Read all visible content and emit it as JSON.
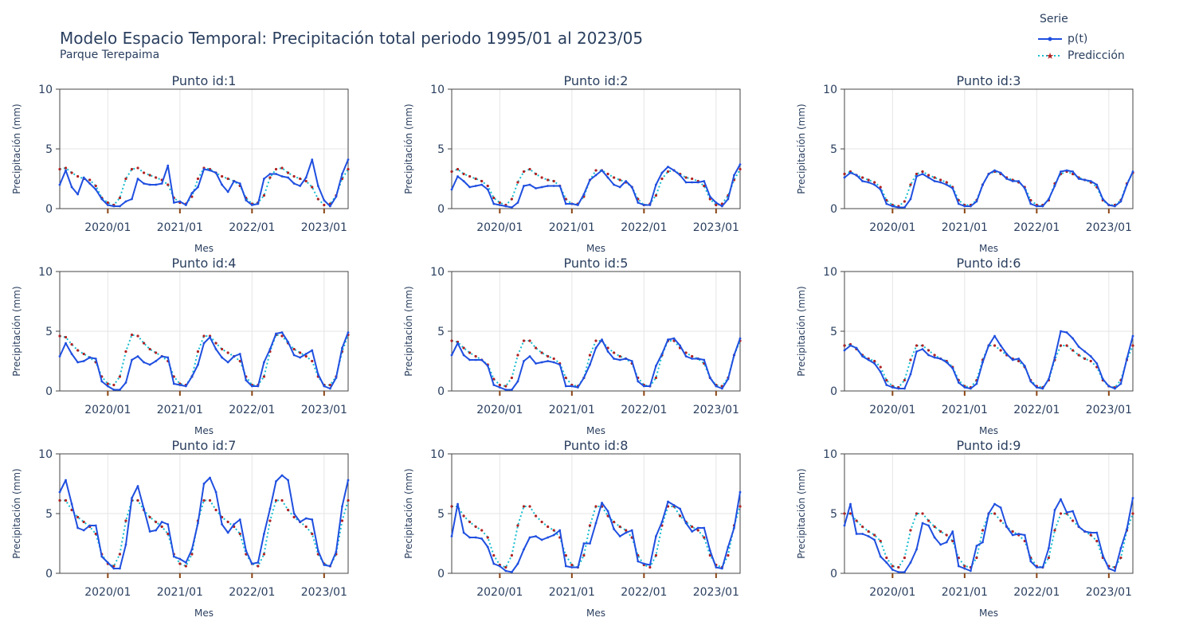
{
  "title": "Modelo Espacio Temporal: Precipitación total periodo 1995/01 al 2023/05",
  "subtitle": "Parque Terepaima",
  "legend": {
    "title": "Serie",
    "items": [
      {
        "label": "p(t)",
        "color": "#1f4fe0",
        "style": "solid-line-with-dots"
      },
      {
        "label": "Predicción",
        "color": "#17becf",
        "marker_color": "#b22222",
        "style": "dotted-line-with-stars"
      }
    ]
  },
  "axis_labels": {
    "x": "Mes",
    "y": "Precipitación (mm)"
  },
  "chart_data": {
    "type": "line",
    "layout": "3x3 small multiples",
    "x_start": "2019/05",
    "x_end": "2023/05",
    "x_ticks": [
      "2020/01",
      "2021/01",
      "2022/01",
      "2023/01"
    ],
    "ylim": [
      0,
      10
    ],
    "y_ticks": [
      0,
      5,
      10
    ],
    "grid": true,
    "legend_position": "top-right",
    "colors": {
      "observed": "#1f4fe0",
      "predicted_line": "#17becf",
      "predicted_marker": "#b22222",
      "grid": "#e5e5e5",
      "axis": "#444444",
      "tick_mark": "#8b4513"
    },
    "panels": [
      {
        "title": "Punto id:1",
        "observed": [
          2.0,
          3.2,
          1.8,
          1.2,
          2.6,
          2.1,
          1.6,
          0.8,
          0.3,
          0.2,
          0.2,
          0.6,
          0.8,
          2.5,
          2.1,
          2.0,
          2.0,
          2.1,
          3.6,
          0.5,
          0.6,
          0.3,
          1.3,
          1.8,
          3.3,
          3.2,
          3.0,
          2.0,
          1.4,
          2.3,
          2.1,
          0.7,
          0.3,
          0.4,
          2.5,
          2.9,
          2.9,
          2.7,
          2.6,
          2.1,
          1.9,
          2.6,
          4.1,
          1.9,
          0.7,
          0.2,
          1.0,
          2.9,
          4.1
        ],
        "predicted": [
          3.3,
          3.4,
          3.0,
          2.7,
          2.5,
          2.4,
          1.9,
          0.9,
          0.5,
          0.3,
          0.9,
          2.5,
          3.3,
          3.4,
          3.0,
          2.8,
          2.6,
          2.4,
          2.0,
          0.9,
          0.5,
          0.4,
          1.0,
          2.5,
          3.4,
          3.3,
          3.0,
          2.7,
          2.5,
          2.3,
          1.9,
          0.9,
          0.4,
          0.5,
          1.1,
          2.6,
          3.3,
          3.4,
          3.0,
          2.7,
          2.5,
          2.3,
          1.8,
          0.8,
          0.3,
          0.4,
          1.1,
          2.5,
          3.3
        ]
      },
      {
        "title": "Punto id:2",
        "observed": [
          1.6,
          2.7,
          2.3,
          1.8,
          1.9,
          2.0,
          1.6,
          0.4,
          0.3,
          0.2,
          0.1,
          0.5,
          1.9,
          2.0,
          1.7,
          1.8,
          1.9,
          1.9,
          1.9,
          0.4,
          0.4,
          0.3,
          1.2,
          2.4,
          2.8,
          3.2,
          2.6,
          2.0,
          1.8,
          2.3,
          1.8,
          0.5,
          0.3,
          0.3,
          2.0,
          3.0,
          3.5,
          3.2,
          2.8,
          2.2,
          2.2,
          2.2,
          2.3,
          1.0,
          0.5,
          0.2,
          0.8,
          2.8,
          3.7
        ],
        "predicted": [
          3.1,
          3.3,
          2.9,
          2.7,
          2.5,
          2.3,
          1.9,
          0.9,
          0.5,
          0.3,
          0.8,
          2.2,
          3.1,
          3.3,
          2.9,
          2.6,
          2.4,
          2.3,
          1.9,
          0.8,
          0.4,
          0.4,
          1.0,
          2.4,
          3.2,
          3.2,
          2.9,
          2.6,
          2.4,
          2.2,
          1.8,
          0.8,
          0.3,
          0.4,
          1.1,
          2.5,
          3.1,
          3.2,
          2.9,
          2.6,
          2.5,
          2.3,
          1.9,
          0.8,
          0.3,
          0.4,
          1.1,
          2.4,
          3.3
        ]
      },
      {
        "title": "Punto id:3",
        "observed": [
          2.6,
          3.0,
          2.8,
          2.3,
          2.2,
          2.0,
          1.6,
          0.4,
          0.2,
          0.1,
          0.1,
          0.8,
          2.7,
          2.9,
          2.6,
          2.3,
          2.2,
          2.0,
          1.7,
          0.4,
          0.2,
          0.2,
          0.6,
          2.0,
          2.9,
          3.2,
          3.0,
          2.5,
          2.3,
          2.3,
          1.7,
          0.4,
          0.2,
          0.2,
          0.8,
          1.9,
          3.1,
          3.2,
          3.1,
          2.5,
          2.4,
          2.3,
          2.0,
          0.8,
          0.3,
          0.2,
          0.6,
          2.0,
          3.1
        ],
        "predicted": [
          2.9,
          3.1,
          2.8,
          2.6,
          2.4,
          2.2,
          1.8,
          0.7,
          0.3,
          0.2,
          0.6,
          2.0,
          2.9,
          3.1,
          2.8,
          2.6,
          2.4,
          2.2,
          1.8,
          0.7,
          0.3,
          0.3,
          0.7,
          2.0,
          2.9,
          3.1,
          2.9,
          2.6,
          2.4,
          2.2,
          1.8,
          0.7,
          0.3,
          0.3,
          0.7,
          2.1,
          2.9,
          3.1,
          2.9,
          2.6,
          2.4,
          2.2,
          1.8,
          0.7,
          0.3,
          0.3,
          0.7,
          2.1,
          3.0
        ]
      },
      {
        "title": "Punto id:4",
        "observed": [
          2.9,
          4.0,
          3.1,
          2.4,
          2.5,
          2.8,
          2.7,
          0.8,
          0.4,
          0.1,
          0.1,
          0.7,
          2.6,
          2.9,
          2.4,
          2.2,
          2.5,
          2.9,
          2.8,
          0.6,
          0.5,
          0.4,
          1.2,
          2.2,
          4.0,
          4.5,
          3.5,
          2.8,
          2.4,
          2.9,
          3.1,
          0.9,
          0.4,
          0.4,
          2.4,
          3.5,
          4.8,
          4.9,
          4.1,
          3.0,
          2.8,
          3.1,
          3.4,
          1.4,
          0.4,
          0.2,
          1.1,
          3.6,
          4.9
        ],
        "predicted": [
          4.6,
          4.5,
          3.9,
          3.4,
          3.1,
          2.8,
          2.4,
          1.2,
          0.6,
          0.5,
          1.2,
          3.3,
          4.7,
          4.6,
          4.0,
          3.5,
          3.2,
          2.9,
          2.5,
          1.2,
          0.6,
          0.5,
          1.2,
          3.3,
          4.6,
          4.6,
          4.0,
          3.5,
          3.2,
          2.9,
          2.5,
          1.2,
          0.5,
          0.5,
          1.2,
          3.3,
          4.7,
          4.6,
          4.0,
          3.5,
          3.2,
          2.9,
          2.5,
          1.2,
          0.5,
          0.5,
          1.2,
          3.3,
          4.7
        ]
      },
      {
        "title": "Punto id:5",
        "observed": [
          3.0,
          4.0,
          3.0,
          2.6,
          2.6,
          2.6,
          2.1,
          0.5,
          0.3,
          0.1,
          0.1,
          0.8,
          2.5,
          2.9,
          2.3,
          2.4,
          2.5,
          2.4,
          2.2,
          0.4,
          0.4,
          0.3,
          1.1,
          2.2,
          3.6,
          4.3,
          3.3,
          2.7,
          2.6,
          2.7,
          2.5,
          0.8,
          0.4,
          0.4,
          2.1,
          3.1,
          4.3,
          4.4,
          3.8,
          2.9,
          2.7,
          2.7,
          2.6,
          1.1,
          0.4,
          0.2,
          1.0,
          3.0,
          4.4
        ],
        "predicted": [
          4.2,
          4.1,
          3.6,
          3.2,
          2.9,
          2.6,
          2.2,
          1.0,
          0.5,
          0.4,
          1.1,
          3.0,
          4.2,
          4.2,
          3.6,
          3.2,
          2.9,
          2.7,
          2.3,
          1.1,
          0.5,
          0.4,
          1.1,
          3.0,
          4.2,
          4.2,
          3.6,
          3.2,
          2.9,
          2.7,
          2.3,
          1.1,
          0.5,
          0.4,
          1.1,
          3.0,
          4.2,
          4.2,
          3.6,
          3.2,
          2.9,
          2.7,
          2.3,
          1.1,
          0.5,
          0.4,
          1.1,
          3.0,
          4.2
        ]
      },
      {
        "title": "Punto id:6",
        "observed": [
          3.4,
          3.8,
          3.6,
          2.9,
          2.6,
          2.3,
          1.6,
          0.5,
          0.3,
          0.2,
          0.2,
          1.4,
          3.3,
          3.5,
          3.0,
          2.8,
          2.7,
          2.4,
          1.9,
          0.7,
          0.3,
          0.2,
          0.6,
          2.4,
          3.8,
          4.6,
          3.8,
          3.1,
          2.6,
          2.7,
          2.1,
          0.8,
          0.3,
          0.2,
          1.0,
          2.8,
          5.0,
          4.9,
          4.4,
          3.7,
          3.3,
          2.9,
          2.3,
          1.0,
          0.4,
          0.2,
          0.6,
          2.7,
          4.6
        ],
        "predicted": [
          3.8,
          3.9,
          3.5,
          3.0,
          2.7,
          2.5,
          2.0,
          0.9,
          0.4,
          0.3,
          0.9,
          2.6,
          3.8,
          3.8,
          3.4,
          3.0,
          2.7,
          2.5,
          2.0,
          0.9,
          0.4,
          0.3,
          0.9,
          2.6,
          3.8,
          3.8,
          3.4,
          3.0,
          2.7,
          2.5,
          2.0,
          0.9,
          0.4,
          0.3,
          0.9,
          2.6,
          3.8,
          3.8,
          3.4,
          3.0,
          2.7,
          2.5,
          2.0,
          0.9,
          0.4,
          0.3,
          0.9,
          2.6,
          3.8
        ]
      },
      {
        "title": "Punto id:7",
        "observed": [
          6.8,
          7.8,
          5.8,
          3.8,
          3.6,
          4.0,
          4.0,
          1.4,
          0.9,
          0.4,
          0.4,
          2.4,
          6.3,
          7.3,
          5.4,
          3.5,
          3.6,
          4.3,
          4.1,
          1.4,
          1.2,
          0.9,
          2.0,
          4.2,
          7.5,
          8.0,
          6.8,
          4.1,
          3.4,
          4.1,
          4.5,
          1.9,
          0.8,
          0.9,
          3.3,
          5.4,
          7.7,
          8.2,
          7.8,
          5.0,
          4.3,
          4.6,
          4.5,
          1.9,
          0.7,
          0.6,
          1.8,
          5.6,
          7.8
        ],
        "predicted": [
          6.1,
          6.1,
          5.3,
          4.7,
          4.3,
          3.9,
          3.3,
          1.6,
          0.8,
          0.6,
          1.6,
          4.4,
          6.1,
          6.1,
          5.3,
          4.7,
          4.3,
          3.9,
          3.3,
          1.6,
          0.8,
          0.6,
          1.6,
          4.4,
          6.1,
          6.1,
          5.3,
          4.7,
          4.3,
          3.9,
          3.3,
          1.6,
          0.8,
          0.6,
          1.6,
          4.4,
          6.1,
          6.1,
          5.3,
          4.7,
          4.3,
          3.9,
          3.3,
          1.6,
          0.8,
          0.6,
          1.6,
          4.4,
          6.1
        ]
      },
      {
        "title": "Punto id:8",
        "observed": [
          3.1,
          5.8,
          3.4,
          3.0,
          3.0,
          2.9,
          2.2,
          0.8,
          0.6,
          0.2,
          0.1,
          0.8,
          2.0,
          3.0,
          3.1,
          2.8,
          3.0,
          3.2,
          3.6,
          0.6,
          0.5,
          0.5,
          2.5,
          2.5,
          4.2,
          5.9,
          5.2,
          3.7,
          3.1,
          3.4,
          3.6,
          1.0,
          0.8,
          0.7,
          3.1,
          4.3,
          6.0,
          5.7,
          5.4,
          4.2,
          3.5,
          3.8,
          3.8,
          1.9,
          0.5,
          0.4,
          2.2,
          3.8,
          6.8
        ],
        "predicted": [
          5.6,
          5.6,
          4.8,
          4.3,
          3.9,
          3.6,
          3.0,
          1.5,
          0.7,
          0.5,
          1.5,
          4.0,
          5.6,
          5.6,
          4.8,
          4.3,
          3.9,
          3.6,
          3.0,
          1.5,
          0.7,
          0.5,
          1.5,
          4.0,
          5.6,
          5.6,
          4.8,
          4.3,
          3.9,
          3.6,
          3.0,
          1.5,
          0.7,
          0.5,
          1.5,
          4.0,
          5.6,
          5.6,
          4.8,
          4.3,
          3.9,
          3.6,
          3.0,
          1.5,
          0.7,
          0.5,
          1.5,
          4.0,
          5.6
        ]
      },
      {
        "title": "Punto id:9",
        "observed": [
          4.0,
          5.8,
          3.3,
          3.3,
          3.1,
          2.8,
          1.4,
          0.9,
          0.3,
          0.1,
          0.1,
          0.9,
          2.0,
          4.2,
          4.0,
          3.0,
          2.4,
          2.6,
          3.5,
          0.6,
          0.4,
          0.2,
          2.3,
          2.6,
          5.0,
          5.8,
          5.5,
          3.9,
          3.2,
          3.3,
          3.2,
          1.0,
          0.5,
          0.5,
          2.1,
          5.3,
          6.2,
          5.1,
          5.2,
          3.9,
          3.5,
          3.4,
          3.4,
          1.5,
          0.4,
          0.2,
          2.1,
          3.7,
          6.3
        ],
        "predicted": [
          5.0,
          5.0,
          4.4,
          3.9,
          3.5,
          3.2,
          2.7,
          1.3,
          0.6,
          0.5,
          1.3,
          3.6,
          5.0,
          5.0,
          4.4,
          3.9,
          3.5,
          3.2,
          2.7,
          1.3,
          0.6,
          0.5,
          1.3,
          3.6,
          5.0,
          5.0,
          4.4,
          3.9,
          3.5,
          3.2,
          2.7,
          1.3,
          0.6,
          0.5,
          1.3,
          3.6,
          5.0,
          5.0,
          4.4,
          3.9,
          3.5,
          3.2,
          2.7,
          1.3,
          0.6,
          0.5,
          1.3,
          3.6,
          5.0
        ]
      }
    ]
  }
}
